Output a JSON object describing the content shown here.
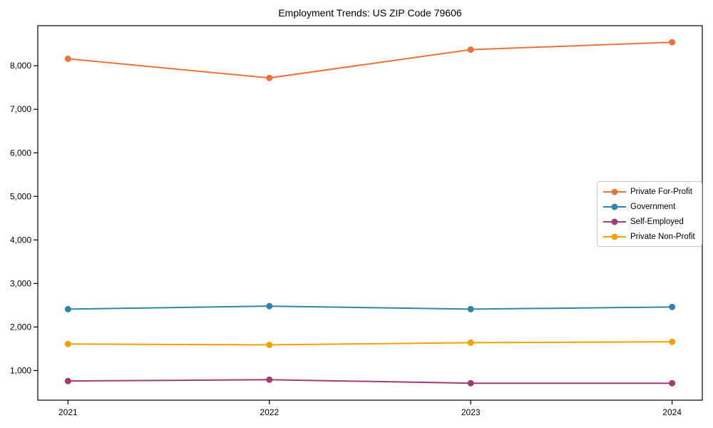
{
  "chart_data": {
    "type": "line",
    "title": "Employment Trends: US ZIP Code 79606",
    "categories": [
      2021,
      2022,
      2023,
      2024
    ],
    "series": [
      {
        "name": "Private For-Profit",
        "color": "#E8743B",
        "values": [
          8160,
          7720,
          8370,
          8540
        ]
      },
      {
        "name": "Government",
        "color": "#2E86AB",
        "values": [
          2410,
          2480,
          2410,
          2460
        ]
      },
      {
        "name": "Self-Employed",
        "color": "#A23B72",
        "values": [
          760,
          790,
          710,
          710
        ]
      },
      {
        "name": "Private Non-Profit",
        "color": "#F2A104",
        "values": [
          1610,
          1590,
          1640,
          1660
        ]
      }
    ],
    "xlabel": "",
    "ylabel": "",
    "xlim": [
      2020.85,
      2024.15
    ],
    "ylim": [
      320,
      8920
    ],
    "yticks": [
      1000,
      2000,
      3000,
      4000,
      5000,
      6000,
      7000,
      8000
    ],
    "ytick_labels": [
      "1,000",
      "2,000",
      "3,000",
      "4,000",
      "5,000",
      "6,000",
      "7,000",
      "8,000"
    ],
    "xtick_labels": [
      "2021",
      "2022",
      "2023",
      "2024"
    ],
    "grid": false,
    "frame": true,
    "legend_position": "center-right",
    "marker": "circle",
    "marker_radius": 4.5,
    "line_width": 2,
    "frame_color": "#000000",
    "background_color": "#ffffff"
  }
}
